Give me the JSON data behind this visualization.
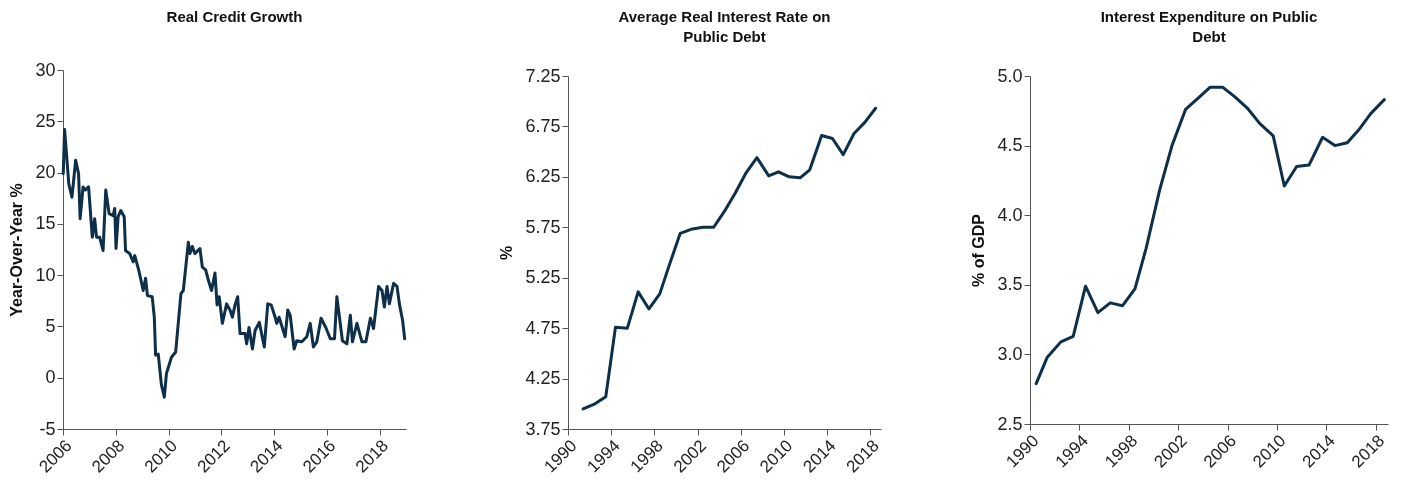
{
  "chart_data": [
    {
      "type": "line",
      "title": "Real Credit Growth",
      "ylabel": "Year-Over-Year %",
      "x": [
        2006.01,
        2006.06,
        2006.22,
        2006.34,
        2006.48,
        2006.59,
        2006.65,
        2006.76,
        2006.85,
        2006.97,
        2007.11,
        2007.2,
        2007.27,
        2007.39,
        2007.52,
        2007.62,
        2007.75,
        2007.9,
        2007.96,
        2008.01,
        2008.09,
        2008.19,
        2008.32,
        2008.37,
        2008.53,
        2008.66,
        2008.72,
        2008.87,
        2009.04,
        2009.13,
        2009.2,
        2009.38,
        2009.46,
        2009.51,
        2009.61,
        2009.73,
        2009.84,
        2009.92,
        2010.11,
        2010.27,
        2010.47,
        2010.56,
        2010.75,
        2010.81,
        2010.9,
        2011.0,
        2011.19,
        2011.28,
        2011.41,
        2011.51,
        2011.63,
        2011.76,
        2011.84,
        2011.92,
        2012.04,
        2012.2,
        2012.33,
        2012.42,
        2012.52,
        2012.62,
        2012.71,
        2012.9,
        2012.96,
        2013.05,
        2013.18,
        2013.28,
        2013.44,
        2013.63,
        2013.76,
        2013.89,
        2014.04,
        2014.1,
        2014.19,
        2014.42,
        2014.52,
        2014.61,
        2014.76,
        2014.86,
        2015.05,
        2015.24,
        2015.37,
        2015.49,
        2015.62,
        2015.78,
        2015.96,
        2016.13,
        2016.29,
        2016.38,
        2016.59,
        2016.76,
        2016.89,
        2016.97,
        2017.14,
        2017.33,
        2017.48,
        2017.65,
        2017.77,
        2017.96,
        2018.09,
        2018.18,
        2018.28,
        2018.37,
        2018.53,
        2018.66,
        2018.75,
        2018.87,
        2018.95
      ],
      "series": [
        {
          "color": "#0d2f4a",
          "values": [
            19.9,
            24.2,
            18.9,
            17.6,
            21.2,
            19.9,
            15.5,
            18.6,
            18.3,
            18.6,
            13.7,
            15.5,
            13.7,
            13.7,
            12.4,
            18.3,
            16.0,
            15.8,
            16.5,
            12.6,
            15.7,
            16.3,
            15.7,
            12.4,
            12.1,
            11.3,
            11.9,
            10.5,
            8.5,
            9.7,
            8.0,
            7.9,
            5.9,
            2.2,
            2.3,
            -0.7,
            -1.9,
            0.4,
            2.0,
            2.5,
            8.2,
            8.5,
            13.2,
            12.1,
            12.8,
            12.1,
            12.6,
            10.8,
            10.5,
            9.5,
            8.5,
            10.2,
            7.1,
            7.9,
            5.3,
            7.2,
            6.6,
            5.9,
            7.1,
            7.9,
            4.3,
            4.3,
            3.3,
            4.9,
            2.8,
            4.6,
            5.4,
            3.0,
            7.2,
            7.1,
            5.9,
            5.3,
            5.9,
            4.0,
            6.6,
            6.1,
            2.8,
            3.6,
            3.5,
            4.0,
            5.3,
            3.0,
            3.5,
            5.8,
            4.9,
            3.8,
            3.8,
            7.9,
            3.6,
            3.3,
            6.1,
            3.5,
            5.3,
            3.5,
            3.5,
            5.8,
            4.8,
            8.9,
            8.5,
            6.9,
            8.9,
            7.2,
            9.2,
            8.9,
            7.2,
            5.6,
            3.8
          ]
        }
      ],
      "xlim": [
        2006,
        2019
      ],
      "xticks": [
        2006,
        2008,
        2010,
        2012,
        2014,
        2016,
        2018
      ],
      "ylim": [
        -5,
        30
      ],
      "yticks": [
        -5,
        0,
        5,
        10,
        15,
        20,
        25,
        30
      ]
    },
    {
      "type": "line",
      "title": "Average Real Interest Rate on Public Debt",
      "ylabel": "%",
      "x": [
        1991.4,
        1992.5,
        1993.5,
        1994.4,
        1995.5,
        1996.5,
        1997.5,
        1998.5,
        1999.4,
        2000.4,
        2001.4,
        2002.5,
        2003.5,
        2004.5,
        2005.5,
        2006.5,
        2007.5,
        2008.6,
        2009.5,
        2010.5,
        2011.5,
        2012.4,
        2013.5,
        2014.5,
        2015.5,
        2016.5,
        2017.5,
        2018.5
      ],
      "series": [
        {
          "color": "#0d2f4a",
          "values": [
            3.95,
            4.0,
            4.07,
            4.76,
            4.75,
            5.11,
            4.94,
            5.09,
            5.38,
            5.69,
            5.73,
            5.75,
            5.75,
            5.91,
            6.09,
            6.29,
            6.44,
            6.26,
            6.3,
            6.25,
            6.24,
            6.32,
            6.66,
            6.63,
            6.47,
            6.68,
            6.79,
            6.93
          ]
        }
      ],
      "xlim": [
        1990,
        2019
      ],
      "xticks": [
        1990,
        1994,
        1998,
        2002,
        2006,
        2010,
        2014,
        2018
      ],
      "ylim": [
        3.75,
        7.25
      ],
      "yticks": [
        3.75,
        4.25,
        4.75,
        5.25,
        5.75,
        6.25,
        6.75,
        7.25
      ]
    },
    {
      "type": "line",
      "title": "Interest Expenditure on Public Debt",
      "ylabel": "% of GDP",
      "x": [
        1990.5,
        1991.4,
        1992.5,
        1993.5,
        1994.5,
        1995.5,
        1996.5,
        1997.5,
        1998.5,
        1999.4,
        2000.5,
        2001.5,
        2002.6,
        2003.6,
        2004.6,
        2005.6,
        2006.6,
        2007.6,
        2008.6,
        2009.7,
        2010.6,
        2011.6,
        2012.6,
        2013.7,
        2014.7,
        2015.7,
        2016.6,
        2017.6,
        2018.7
      ],
      "series": [
        {
          "color": "#0d2f4a",
          "values": [
            2.79,
            2.98,
            3.09,
            3.13,
            3.49,
            3.3,
            3.37,
            3.35,
            3.47,
            3.76,
            4.18,
            4.5,
            4.76,
            4.84,
            4.92,
            4.92,
            4.85,
            4.77,
            4.66,
            4.57,
            4.21,
            4.35,
            4.36,
            4.56,
            4.5,
            4.52,
            4.61,
            4.73,
            4.83
          ]
        }
      ],
      "xlim": [
        1990,
        2019
      ],
      "xticks": [
        1990,
        1994,
        1998,
        2002,
        2006,
        2010,
        2014,
        2018
      ],
      "ylim": [
        2.5,
        5.0
      ],
      "yticks": [
        {
          "value": 2.5,
          "label": "2.5"
        },
        {
          "value": 3,
          "label": "3.0"
        },
        {
          "value": 3.5,
          "label": "3.5"
        },
        {
          "value": 4,
          "label": "4.0"
        },
        {
          "value": 4.5,
          "label": "4.5"
        },
        {
          "value": 5,
          "label": "5.0"
        }
      ]
    }
  ]
}
